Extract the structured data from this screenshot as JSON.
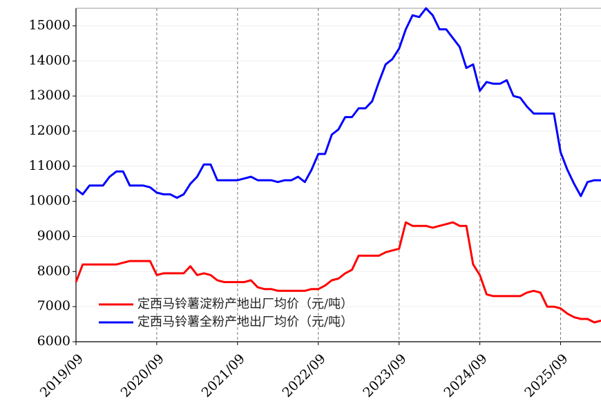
{
  "chart_data": {
    "type": "line",
    "x": [
      "2019/09",
      "2019/10",
      "2019/11",
      "2019/12",
      "2020/01",
      "2020/02",
      "2020/03",
      "2020/04",
      "2020/05",
      "2020/06",
      "2020/07",
      "2020/08",
      "2020/09",
      "2020/10",
      "2020/11",
      "2020/12",
      "2021/01",
      "2021/02",
      "2021/03",
      "2021/04",
      "2021/05",
      "2021/06",
      "2021/07",
      "2021/08",
      "2021/09",
      "2021/10",
      "2021/11",
      "2021/12",
      "2022/01",
      "2022/02",
      "2022/03",
      "2022/04",
      "2022/05",
      "2022/06",
      "2022/07",
      "2022/08",
      "2022/09",
      "2022/10",
      "2022/11",
      "2022/12",
      "2023/01",
      "2023/02",
      "2023/03",
      "2023/04",
      "2023/05",
      "2023/06",
      "2023/07",
      "2023/08",
      "2023/09",
      "2023/10",
      "2023/11",
      "2023/12",
      "2024/01",
      "2024/02",
      "2024/03",
      "2024/04",
      "2024/05",
      "2024/06",
      "2024/07",
      "2024/08",
      "2024/09",
      "2024/10",
      "2024/11",
      "2024/12",
      "2025/01",
      "2025/02",
      "2025/03",
      "2025/04",
      "2025/05",
      "2025/06",
      "2025/07",
      "2025/08",
      "2025/09",
      "2025/10",
      "2025/11",
      "2025/12",
      "2026/01",
      "2026/02",
      "2026/03"
    ],
    "series": [
      {
        "name": "定西马铃薯淀粉产地出厂均价（元/吨）",
        "color": "#ff0000",
        "values": [
          7700,
          8200,
          8200,
          8200,
          8200,
          8200,
          8200,
          8250,
          8300,
          8300,
          8300,
          8300,
          7900,
          7950,
          7950,
          7950,
          7950,
          8150,
          7900,
          7950,
          7900,
          7750,
          7700,
          7700,
          7700,
          7700,
          7750,
          7550,
          7500,
          7500,
          7450,
          7450,
          7450,
          7450,
          7450,
          7500,
          7500,
          7600,
          7750,
          7800,
          7950,
          8050,
          8450,
          8450,
          8450,
          8450,
          8550,
          8600,
          8650,
          9400,
          9300,
          9300,
          9300,
          9250,
          9300,
          9350,
          9400,
          9300,
          9300,
          8200,
          7900,
          7350,
          7300,
          7300,
          7300,
          7300,
          7300,
          7400,
          7450,
          7400,
          7000,
          7000,
          6950,
          6800,
          6700,
          6650,
          6650,
          6550,
          6600
        ]
      },
      {
        "name": "定西马铃薯全粉产地出厂均价（元/吨）",
        "color": "#0000ff",
        "values": [
          10350,
          10200,
          10450,
          10450,
          10450,
          10700,
          10850,
          10850,
          10450,
          10450,
          10450,
          10400,
          10250,
          10200,
          10200,
          10100,
          10200,
          10500,
          10700,
          11050,
          11050,
          10600,
          10600,
          10600,
          10600,
          10650,
          10700,
          10600,
          10600,
          10600,
          10550,
          10600,
          10600,
          10700,
          10550,
          10900,
          11350,
          11350,
          11900,
          12050,
          12400,
          12400,
          12650,
          12650,
          12850,
          13400,
          13900,
          14050,
          14350,
          14900,
          15300,
          15250,
          15500,
          15300,
          14900,
          14900,
          14650,
          14400,
          13800,
          13900,
          13150,
          13400,
          13350,
          13350,
          13450,
          13000,
          12950,
          12700,
          12500,
          12500,
          12500,
          12500,
          11400,
          10900,
          10500,
          10150,
          10550,
          10600,
          10600
        ]
      }
    ],
    "xlim": [
      "2019/09",
      "2026/03"
    ],
    "xticks": [
      "2019/09",
      "2020/09",
      "2021/09",
      "2022/09",
      "2023/09",
      "2024/09",
      "2025/09"
    ],
    "ylim": [
      6000,
      15500
    ],
    "yticks": [
      6000,
      7000,
      8000,
      9000,
      10000,
      11000,
      12000,
      13000,
      14000,
      15000
    ],
    "grid": true
  }
}
